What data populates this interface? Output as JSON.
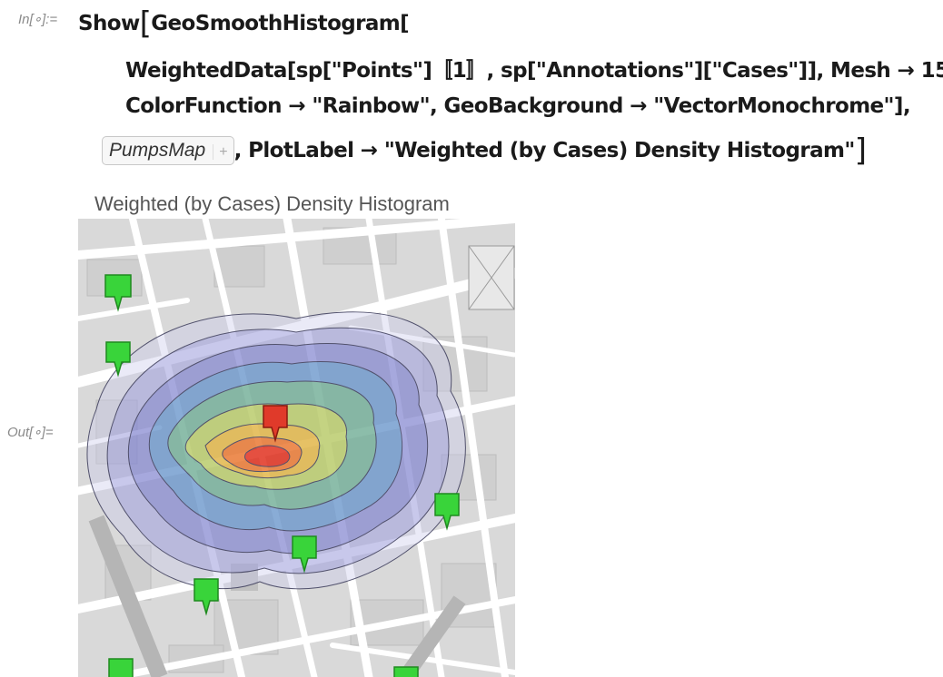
{
  "input": {
    "label": "In[∘]:=",
    "line1_head": "Show",
    "line1_tail": "GeoSmoothHistogram[",
    "line2": "WeightedData[sp[\"Points\"]〚1〛, sp[\"Annotations\"][\"Cases\"]], Mesh → 15,",
    "line3": "ColorFunction → \"Rainbow\", GeoBackground → \"VectorMonochrome\"],",
    "chip_label": "PumpsMap",
    "chip_plus": "+",
    "line4_tail": ", PlotLabel → \"Weighted (by Cases) Density Histogram\"",
    "open_bracket": "[",
    "close_bracket": "]"
  },
  "output": {
    "label": "Out[∘]=",
    "plot_label": "Weighted (by Cases) Density Histogram",
    "colors": {
      "density_high": "#e02a1e",
      "density_low": "#4a4ab8",
      "pump_marker": "#39d43a",
      "highlight_marker": "#e03a2a",
      "map_background": "#dcdcdc",
      "street": "#ffffff"
    },
    "markers": [
      {
        "kind": "pump",
        "icon": "green-map-pin-icon"
      },
      {
        "kind": "highlighted-pump",
        "icon": "red-map-pin-icon"
      }
    ]
  }
}
